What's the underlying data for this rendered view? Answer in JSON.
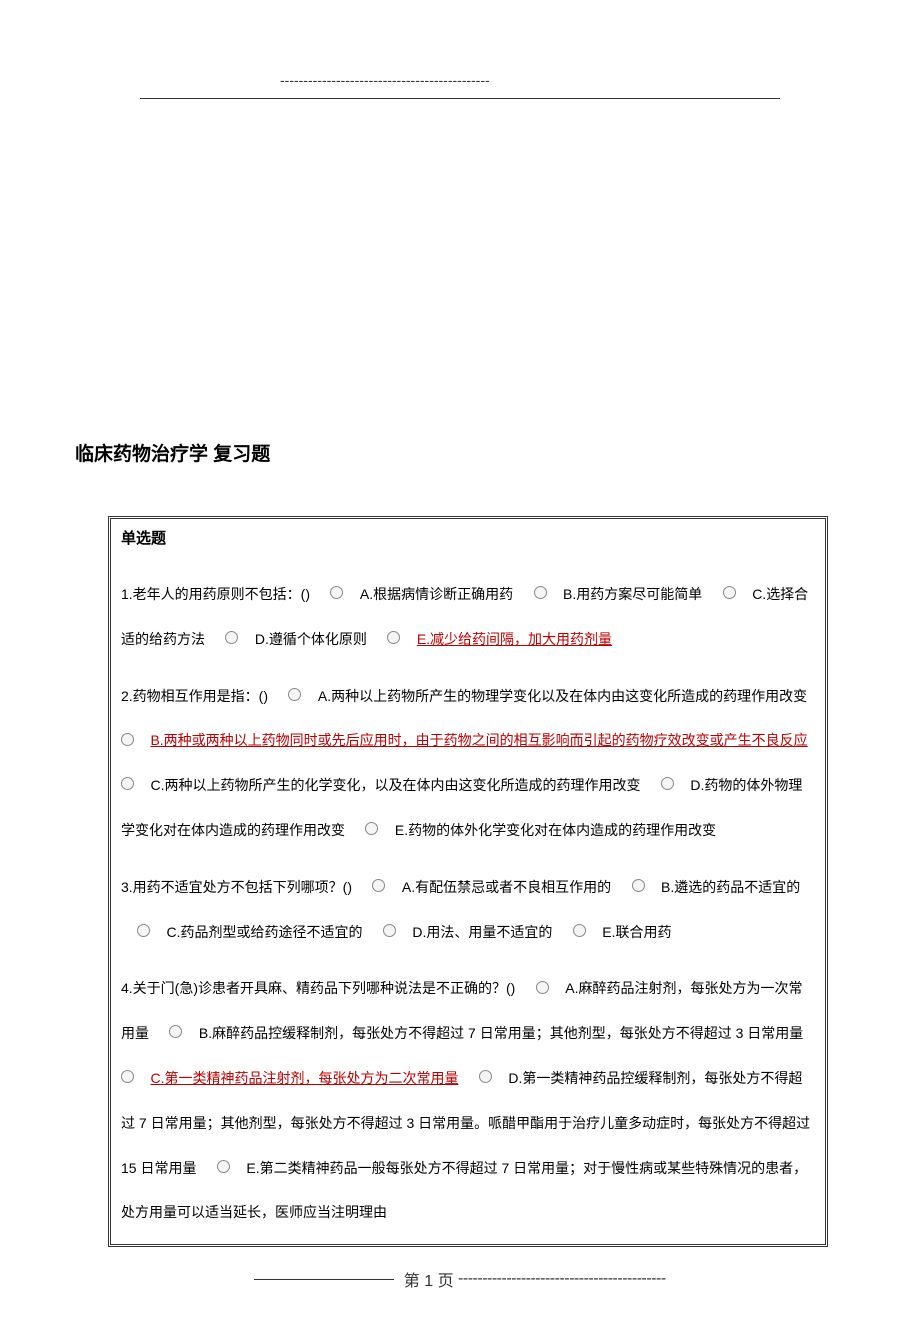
{
  "header": {
    "dashes": "---------------------------------------------"
  },
  "title": "临床药物治疗学 复习题",
  "section_header": "单选题",
  "questions": [
    {
      "stem": "1.老年人的用药原则不包括：()",
      "options": [
        {
          "label": "A.根据病情诊断正确用药",
          "highlighted": false
        },
        {
          "label": "B.用药方案尽可能简单",
          "highlighted": false
        },
        {
          "label": "C.选择合适的给药方法",
          "highlighted": false
        },
        {
          "label": "D.遵循个体化原则",
          "highlighted": false
        },
        {
          "label": "E.减少给药间隔，加大用药剂量",
          "highlighted": true
        }
      ]
    },
    {
      "stem": "2.药物相互作用是指：()",
      "options": [
        {
          "label": "A.两种以上药物所产生的物理学变化以及在体内由这变化所造成的药理作用改变",
          "highlighted": false
        },
        {
          "label": "B.两种或两种以上药物同时或先后应用时，由于药物之间的相互影响而引起的药物疗效改变或产生不良反应",
          "highlighted": true
        },
        {
          "label": "C.两种以上药物所产生的化学变化，以及在体内由这变化所造成的药理作用改变",
          "highlighted": false
        },
        {
          "label": "D.药物的体外物理学变化对在体内造成的药理作用改变",
          "highlighted": false
        },
        {
          "label": "E.药物的体外化学变化对在体内造成的药理作用改变",
          "highlighted": false
        }
      ]
    },
    {
      "stem": "3.用药不适宜处方不包括下列哪项？()",
      "options": [
        {
          "label": "A.有配伍禁忌或者不良相互作用的",
          "highlighted": false
        },
        {
          "label": "B.遴选的药品不适宜的",
          "highlighted": false
        },
        {
          "label": "C.药品剂型或给药途径不适宜的",
          "highlighted": false
        },
        {
          "label": "D.用法、用量不适宜的",
          "highlighted": false
        },
        {
          "label": "E.联合用药",
          "highlighted": false
        }
      ]
    },
    {
      "stem": "4.关于门(急)诊患者开具麻、精药品下列哪种说法是不正确的？()",
      "options": [
        {
          "label": "A.麻醉药品注射剂，每张处方为一次常用量",
          "highlighted": false
        },
        {
          "label": "B.麻醉药品控缓释制剂，每张处方不得超过 7 日常用量；其他剂型，每张处方不得超过 3 日常用量",
          "highlighted": false
        },
        {
          "label": "C.第一类精神药品注射剂，每张处方为二次常用量",
          "highlighted": true
        },
        {
          "label": "D.第一类精神药品控缓释制剂，每张处方不得超过 7 日常用量；其他剂型，每张处方不得超过 3 日常用量。哌醋甲酯用于治疗儿童多动症时，每张处方不得超过 15 日常用量",
          "highlighted": false
        },
        {
          "label": "E.第二类精神药品一般每张处方不得超过 7 日常用量；对于慢性病或某些特殊情况的患者，处方用量可以适当延长，医师应当注明理由",
          "highlighted": false
        }
      ]
    }
  ],
  "footer": {
    "page_label": "第 1 页",
    "dashes": "-------------------------------------------"
  }
}
